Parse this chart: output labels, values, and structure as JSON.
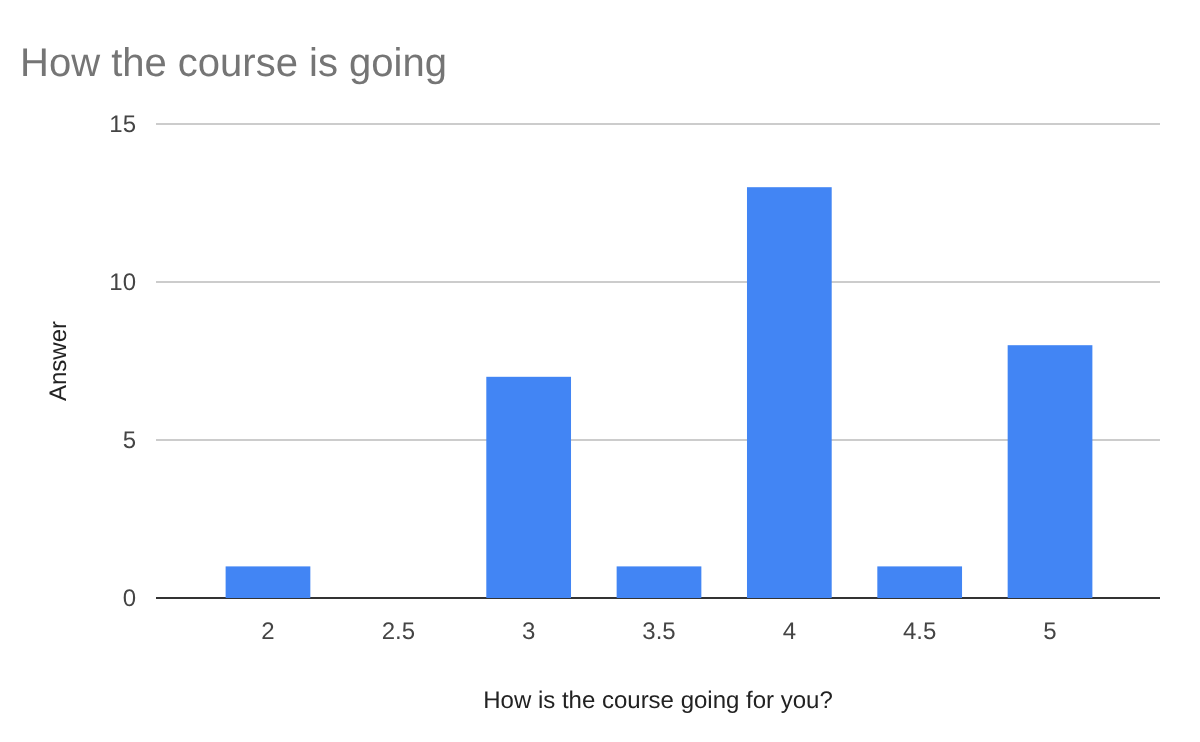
{
  "chart_data": {
    "type": "bar",
    "title": "How the course is going",
    "xlabel": "How is the course going for you?",
    "ylabel": "Answer",
    "categories": [
      "2",
      "2.5",
      "3",
      "3.5",
      "4",
      "4.5",
      "5"
    ],
    "values": [
      1,
      0,
      7,
      1,
      13,
      1,
      8
    ],
    "color": "#4285f4",
    "ylim": [
      0,
      15
    ],
    "yticks": [
      0,
      5,
      10,
      15
    ],
    "grid": "y"
  }
}
